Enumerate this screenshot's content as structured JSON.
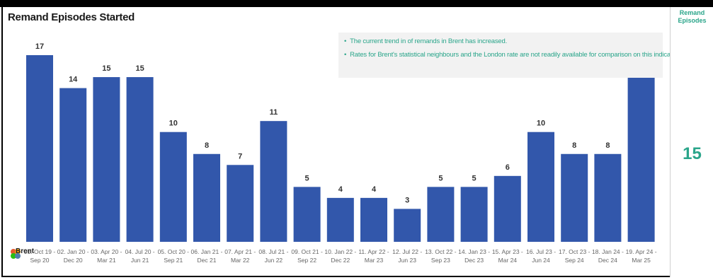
{
  "chart_title": "Remand Episodes Started",
  "notes": [
    "The current trend in of remands in Brent has increased.",
    "Rates for Brent's statistical neighbours and the London rate are not readily available for comparison on this indicator"
  ],
  "logo_text": "Brent",
  "kpi": {
    "title": "Remand Episodes",
    "value": "15"
  },
  "colors": {
    "bar": "#3257ab",
    "accent": "#2aa58a"
  },
  "chart_data": {
    "type": "bar",
    "title": "Remand Episodes Started",
    "xlabel": "",
    "ylabel": "",
    "ylim": [
      0,
      17
    ],
    "grid": false,
    "categories": [
      [
        "01. Oct 19 -",
        "Sep 20"
      ],
      [
        "02. Jan 20 -",
        "Dec 20"
      ],
      [
        "03. Apr 20 -",
        "Mar 21"
      ],
      [
        "04. Jul 20 -",
        "Jun 21"
      ],
      [
        "05. Oct 20 -",
        "Sep 21"
      ],
      [
        "06. Jan 21 -",
        "Dec 21"
      ],
      [
        "07. Apr 21 -",
        "Mar 22"
      ],
      [
        "08. Jul 21 -",
        "Jun 22"
      ],
      [
        "09. Oct 21 -",
        "Sep 22"
      ],
      [
        "10. Jan 22 -",
        "Dec 22"
      ],
      [
        "11. Apr 22 -",
        "Mar 23"
      ],
      [
        "12. Jul 22 -",
        "Jun 23"
      ],
      [
        "13. Oct 22 -",
        "Sep 23"
      ],
      [
        "14. Jan 23 -",
        "Dec 23"
      ],
      [
        "15. Apr 23 -",
        "Mar 24"
      ],
      [
        "16. Jul 23 -",
        "Jun 24"
      ],
      [
        "17. Oct 23 -",
        "Sep 24"
      ],
      [
        "18. Jan 24 -",
        "Dec 24"
      ],
      [
        "19. Apr 24 -",
        "Mar 25"
      ]
    ],
    "values": [
      17,
      14,
      15,
      15,
      10,
      8,
      7,
      11,
      5,
      4,
      4,
      3,
      5,
      5,
      6,
      10,
      8,
      8,
      15
    ]
  }
}
